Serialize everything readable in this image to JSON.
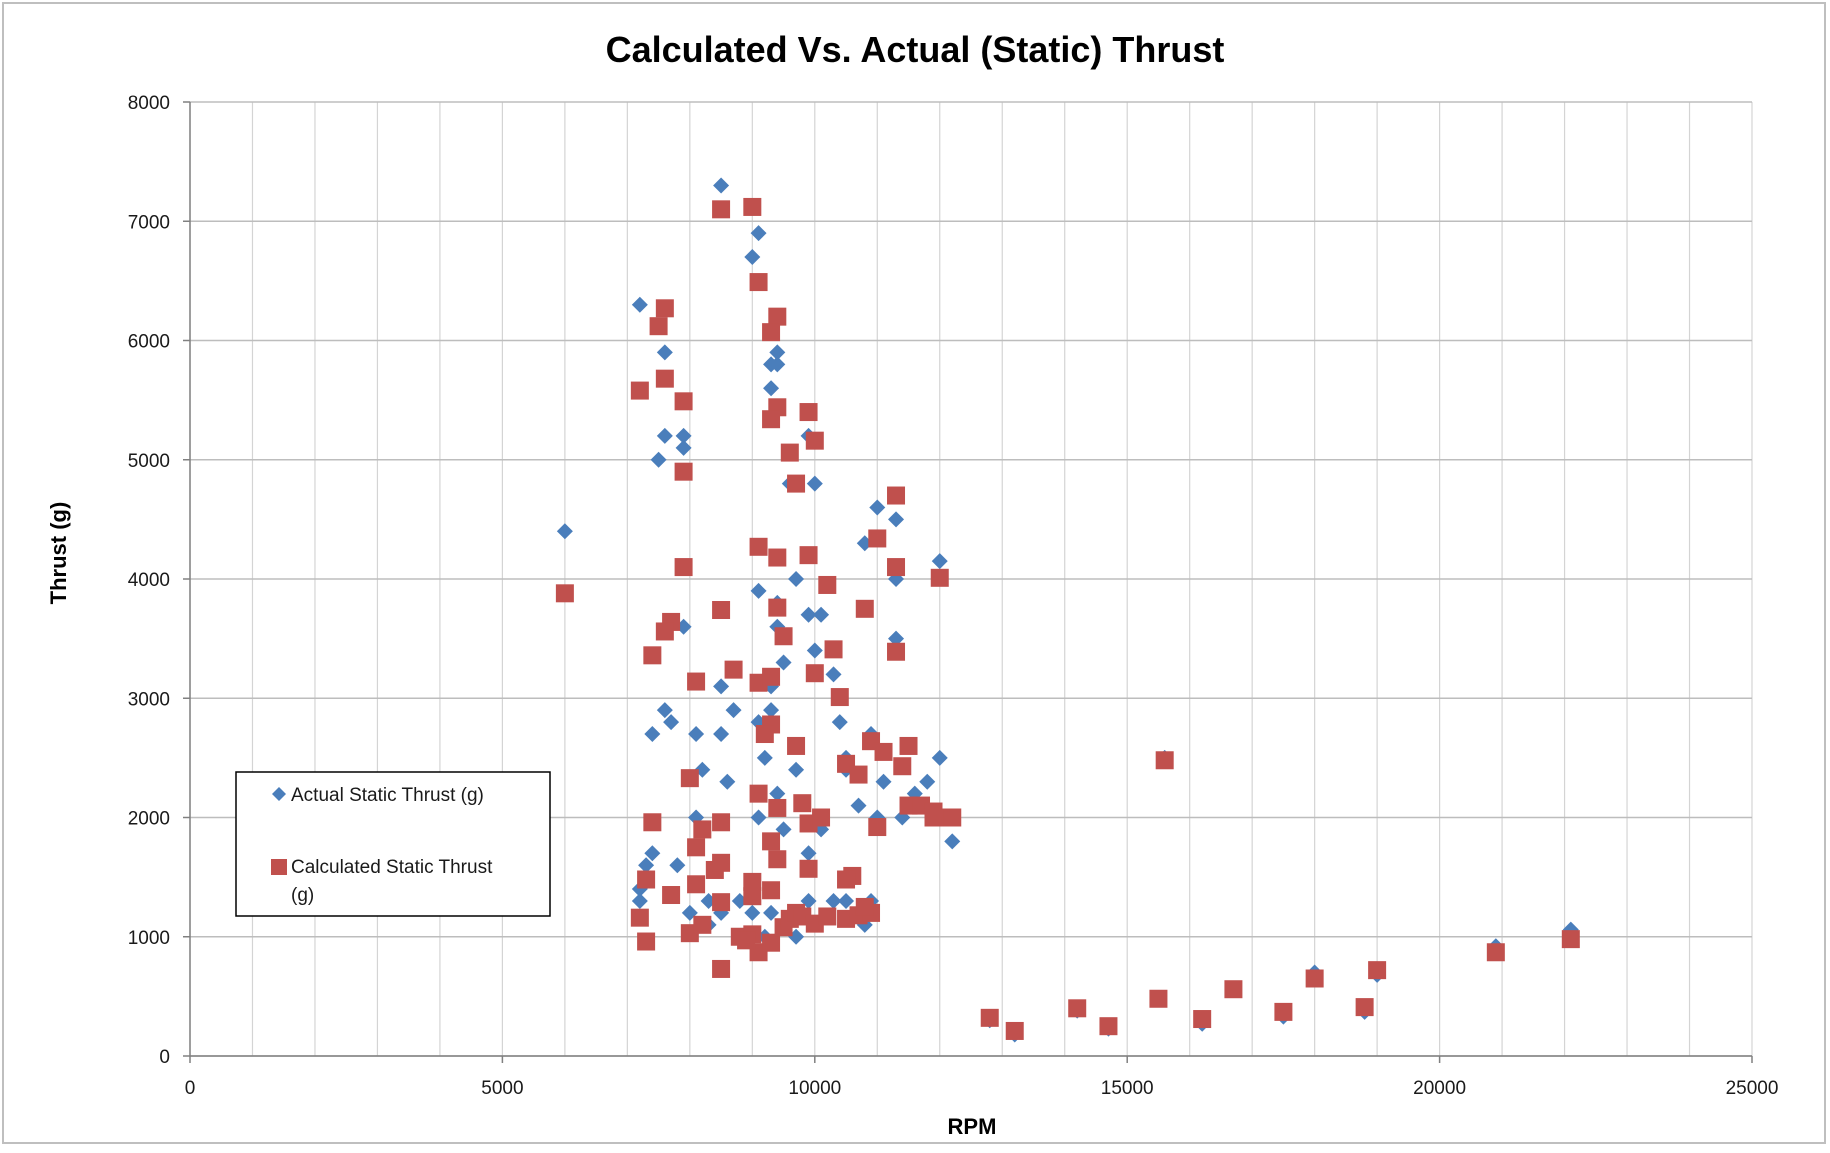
{
  "chart_data": {
    "type": "scatter",
    "title": "Calculated Vs. Actual (Static) Thrust",
    "xlabel": "RPM",
    "ylabel": "Thrust (g)",
    "xlim": [
      0,
      25000
    ],
    "ylim": [
      0,
      8000
    ],
    "x_ticks": [
      "0",
      "5000",
      "10000",
      "15000",
      "20000",
      "25000"
    ],
    "y_ticks": [
      "0",
      "1000",
      "2000",
      "3000",
      "4000",
      "5000",
      "6000",
      "7000",
      "8000"
    ],
    "grid": true,
    "legend_position": "left",
    "series": [
      {
        "name": "Actual Static Thrust (g)",
        "marker": "diamond",
        "color": "#4a7ebb",
        "points": [
          [
            6000,
            4400
          ],
          [
            7200,
            6300
          ],
          [
            7500,
            5000
          ],
          [
            7600,
            5900
          ],
          [
            7600,
            5200
          ],
          [
            7900,
            5200
          ],
          [
            7900,
            5100
          ],
          [
            7600,
            2900
          ],
          [
            7700,
            2800
          ],
          [
            7400,
            2700
          ],
          [
            7900,
            3600
          ],
          [
            8100,
            2700
          ],
          [
            8200,
            2400
          ],
          [
            8500,
            2700
          ],
          [
            8500,
            3100
          ],
          [
            8600,
            2300
          ],
          [
            8700,
            2900
          ],
          [
            8100,
            2000
          ],
          [
            7800,
            1600
          ],
          [
            7400,
            1700
          ],
          [
            7300,
            1600
          ],
          [
            7200,
            1400
          ],
          [
            7200,
            1300
          ],
          [
            8000,
            1200
          ],
          [
            8300,
            1300
          ],
          [
            8500,
            1200
          ],
          [
            8500,
            7300
          ],
          [
            9100,
            6900
          ],
          [
            9000,
            6700
          ],
          [
            9300,
            5800
          ],
          [
            9400,
            5800
          ],
          [
            9400,
            5900
          ],
          [
            9300,
            5600
          ],
          [
            9900,
            5200
          ],
          [
            9600,
            4800
          ],
          [
            10000,
            4800
          ],
          [
            9100,
            3900
          ],
          [
            9400,
            3800
          ],
          [
            9400,
            3600
          ],
          [
            9700,
            4000
          ],
          [
            9500,
            3300
          ],
          [
            9900,
            3700
          ],
          [
            10000,
            3400
          ],
          [
            10100,
            3700
          ],
          [
            10300,
            3200
          ],
          [
            10400,
            2800
          ],
          [
            9100,
            2800
          ],
          [
            9300,
            3100
          ],
          [
            9300,
            2900
          ],
          [
            9200,
            2500
          ],
          [
            9400,
            2200
          ],
          [
            9700,
            2400
          ],
          [
            9100,
            2000
          ],
          [
            9500,
            1900
          ],
          [
            9300,
            1800
          ],
          [
            9900,
            1700
          ],
          [
            10100,
            1900
          ],
          [
            10500,
            2500
          ],
          [
            10500,
            2400
          ],
          [
            10700,
            2100
          ],
          [
            10900,
            2700
          ],
          [
            11000,
            2000
          ],
          [
            11100,
            2300
          ],
          [
            10800,
            4300
          ],
          [
            11000,
            4600
          ],
          [
            11300,
            4500
          ],
          [
            11300,
            4000
          ],
          [
            11300,
            3500
          ],
          [
            11500,
            2600
          ],
          [
            11400,
            2000
          ],
          [
            11600,
            2200
          ],
          [
            11800,
            2300
          ],
          [
            12000,
            2500
          ],
          [
            12200,
            1800
          ],
          [
            12000,
            4150
          ],
          [
            9000,
            1200
          ],
          [
            9300,
            1200
          ],
          [
            9500,
            1100
          ],
          [
            9700,
            1000
          ],
          [
            9200,
            1000
          ],
          [
            9900,
            1300
          ],
          [
            10300,
            1300
          ],
          [
            10500,
            1300
          ],
          [
            10700,
            1200
          ],
          [
            10800,
            1100
          ],
          [
            10900,
            1300
          ],
          [
            8800,
            1300
          ],
          [
            8300,
            1100
          ],
          [
            12800,
            300
          ],
          [
            13200,
            180
          ],
          [
            14200,
            380
          ],
          [
            14700,
            230
          ],
          [
            15500,
            480
          ],
          [
            15600,
            2500
          ],
          [
            16200,
            270
          ],
          [
            16700,
            560
          ],
          [
            17500,
            330
          ],
          [
            18000,
            700
          ],
          [
            18800,
            370
          ],
          [
            19000,
            680
          ],
          [
            20900,
            920
          ],
          [
            22100,
            1060
          ]
        ]
      },
      {
        "name": "Calculated Static Thrust (g)",
        "marker": "square",
        "color": "#c0504d",
        "points": [
          [
            6000,
            3880
          ],
          [
            7200,
            5580
          ],
          [
            7500,
            6120
          ],
          [
            7600,
            6270
          ],
          [
            7600,
            5680
          ],
          [
            7900,
            5490
          ],
          [
            7900,
            4900
          ],
          [
            7900,
            4100
          ],
          [
            7700,
            3640
          ],
          [
            7600,
            3560
          ],
          [
            7400,
            3360
          ],
          [
            8100,
            3140
          ],
          [
            8500,
            3740
          ],
          [
            8700,
            3240
          ],
          [
            7400,
            1960
          ],
          [
            7300,
            1480
          ],
          [
            7200,
            1160
          ],
          [
            7300,
            960
          ],
          [
            7700,
            1350
          ],
          [
            8000,
            1030
          ],
          [
            8100,
            1440
          ],
          [
            8100,
            1750
          ],
          [
            8200,
            1900
          ],
          [
            8000,
            2330
          ],
          [
            8200,
            1100
          ],
          [
            8400,
            1560
          ],
          [
            8500,
            1620
          ],
          [
            8500,
            1960
          ],
          [
            8500,
            1290
          ],
          [
            8500,
            730
          ],
          [
            8800,
            1000
          ],
          [
            9000,
            7120
          ],
          [
            8500,
            7100
          ],
          [
            9100,
            6490
          ],
          [
            9400,
            6200
          ],
          [
            9300,
            6070
          ],
          [
            9400,
            5440
          ],
          [
            9300,
            5340
          ],
          [
            9900,
            5400
          ],
          [
            10000,
            5160
          ],
          [
            9600,
            5060
          ],
          [
            9700,
            4800
          ],
          [
            9100,
            4270
          ],
          [
            9400,
            4180
          ],
          [
            9400,
            3760
          ],
          [
            9500,
            3520
          ],
          [
            9900,
            4200
          ],
          [
            10000,
            3210
          ],
          [
            10200,
            3950
          ],
          [
            10300,
            3410
          ],
          [
            10400,
            3010
          ],
          [
            9100,
            3130
          ],
          [
            9300,
            3180
          ],
          [
            9300,
            2780
          ],
          [
            9200,
            2700
          ],
          [
            9100,
            2200
          ],
          [
            9400,
            2080
          ],
          [
            9300,
            1800
          ],
          [
            9400,
            1650
          ],
          [
            9700,
            2600
          ],
          [
            9800,
            2120
          ],
          [
            9900,
            1950
          ],
          [
            9900,
            1570
          ],
          [
            10100,
            2000
          ],
          [
            10500,
            2450
          ],
          [
            10700,
            2360
          ],
          [
            10600,
            1510
          ],
          [
            10500,
            1480
          ],
          [
            10900,
            2640
          ],
          [
            11000,
            1920
          ],
          [
            11100,
            2550
          ],
          [
            11000,
            4340
          ],
          [
            11300,
            4700
          ],
          [
            11300,
            4100
          ],
          [
            10800,
            3750
          ],
          [
            11300,
            3390
          ],
          [
            11500,
            2600
          ],
          [
            11400,
            2430
          ],
          [
            11500,
            2100
          ],
          [
            11700,
            2100
          ],
          [
            11900,
            2050
          ],
          [
            11900,
            2000
          ],
          [
            12100,
            2000
          ],
          [
            12200,
            2000
          ],
          [
            12000,
            4010
          ],
          [
            9000,
            1340
          ],
          [
            9000,
            1460
          ],
          [
            9000,
            1020
          ],
          [
            9100,
            870
          ],
          [
            9300,
            950
          ],
          [
            9300,
            1390
          ],
          [
            9500,
            1080
          ],
          [
            9600,
            1150
          ],
          [
            9700,
            1200
          ],
          [
            9800,
            1170
          ],
          [
            10000,
            1110
          ],
          [
            10200,
            1170
          ],
          [
            10500,
            1150
          ],
          [
            10700,
            1180
          ],
          [
            10900,
            1200
          ],
          [
            10800,
            1250
          ],
          [
            8900,
            970
          ],
          [
            12800,
            320
          ],
          [
            13200,
            210
          ],
          [
            14200,
            400
          ],
          [
            14700,
            250
          ],
          [
            15500,
            480
          ],
          [
            15600,
            2480
          ],
          [
            16200,
            310
          ],
          [
            16700,
            560
          ],
          [
            17500,
            370
          ],
          [
            18000,
            650
          ],
          [
            18800,
            410
          ],
          [
            19000,
            720
          ],
          [
            20900,
            870
          ],
          [
            22100,
            980
          ]
        ]
      }
    ]
  }
}
